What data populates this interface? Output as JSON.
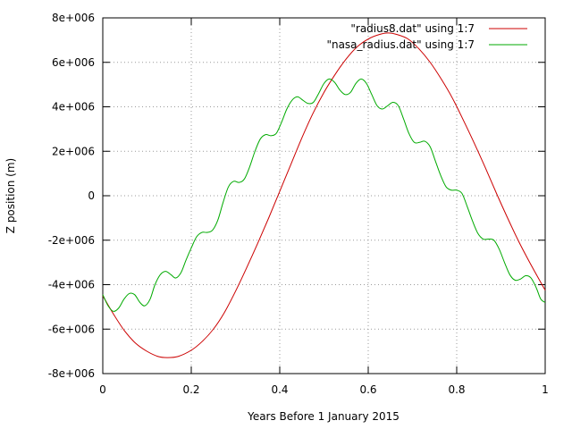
{
  "chart_data": {
    "type": "line",
    "xlabel": "Years Before 1 January 2015",
    "ylabel": "Z position (m)",
    "xlim": [
      0,
      1
    ],
    "ylim": [
      -8000000,
      8000000
    ],
    "grid": true,
    "legend_position": "top-right",
    "x_ticks": [
      {
        "value": 0,
        "label": "0"
      },
      {
        "value": 0.2,
        "label": "0.2"
      },
      {
        "value": 0.4,
        "label": "0.4"
      },
      {
        "value": 0.6,
        "label": "0.6"
      },
      {
        "value": 0.8,
        "label": "0.8"
      },
      {
        "value": 1,
        "label": "1"
      }
    ],
    "y_ticks": [
      {
        "value": -8000000,
        "label": "-8e+006"
      },
      {
        "value": -6000000,
        "label": "-6e+006"
      },
      {
        "value": -4000000,
        "label": "-4e+006"
      },
      {
        "value": -2000000,
        "label": "-2e+006"
      },
      {
        "value": 0,
        "label": "0"
      },
      {
        "value": 2000000,
        "label": "2e+006"
      },
      {
        "value": 4000000,
        "label": "4e+006"
      },
      {
        "value": 6000000,
        "label": "6e+006"
      },
      {
        "value": 8000000,
        "label": "8e+006"
      }
    ],
    "series": [
      {
        "name": "\"radius8.dat\" using 1:7",
        "color": "#cc0000",
        "points": [
          [
            0,
            -4500000
          ],
          [
            0.025,
            -5350000
          ],
          [
            0.05,
            -6100000
          ],
          [
            0.075,
            -6650000
          ],
          [
            0.1,
            -7000000
          ],
          [
            0.125,
            -7230000
          ],
          [
            0.145,
            -7280000
          ],
          [
            0.17,
            -7230000
          ],
          [
            0.2,
            -6950000
          ],
          [
            0.225,
            -6550000
          ],
          [
            0.25,
            -6000000
          ],
          [
            0.275,
            -5250000
          ],
          [
            0.3,
            -4300000
          ],
          [
            0.325,
            -3250000
          ],
          [
            0.35,
            -2150000
          ],
          [
            0.375,
            -1000000
          ],
          [
            0.4,
            200000
          ],
          [
            0.425,
            1400000
          ],
          [
            0.45,
            2600000
          ],
          [
            0.475,
            3700000
          ],
          [
            0.5,
            4650000
          ],
          [
            0.525,
            5450000
          ],
          [
            0.55,
            6150000
          ],
          [
            0.575,
            6700000
          ],
          [
            0.6,
            7050000
          ],
          [
            0.625,
            7250000
          ],
          [
            0.645,
            7320000
          ],
          [
            0.665,
            7250000
          ],
          [
            0.69,
            7050000
          ],
          [
            0.715,
            6600000
          ],
          [
            0.74,
            6000000
          ],
          [
            0.765,
            5250000
          ],
          [
            0.79,
            4400000
          ],
          [
            0.815,
            3400000
          ],
          [
            0.84,
            2350000
          ],
          [
            0.865,
            1250000
          ],
          [
            0.89,
            100000
          ],
          [
            0.915,
            -1000000
          ],
          [
            0.94,
            -2050000
          ],
          [
            0.965,
            -3000000
          ],
          [
            0.99,
            -3900000
          ],
          [
            1,
            -4250000
          ]
        ]
      },
      {
        "name": "\"nasa_radius.dat\" using 1:7",
        "color": "#00aa00",
        "points": [
          [
            0,
            -4450000
          ],
          [
            0.012,
            -4950000
          ],
          [
            0.024,
            -5200000
          ],
          [
            0.036,
            -5050000
          ],
          [
            0.048,
            -4650000
          ],
          [
            0.06,
            -4400000
          ],
          [
            0.072,
            -4450000
          ],
          [
            0.084,
            -4800000
          ],
          [
            0.095,
            -4950000
          ],
          [
            0.107,
            -4650000
          ],
          [
            0.118,
            -4000000
          ],
          [
            0.13,
            -3550000
          ],
          [
            0.142,
            -3400000
          ],
          [
            0.154,
            -3550000
          ],
          [
            0.165,
            -3700000
          ],
          [
            0.177,
            -3450000
          ],
          [
            0.188,
            -2900000
          ],
          [
            0.2,
            -2350000
          ],
          [
            0.212,
            -1850000
          ],
          [
            0.224,
            -1650000
          ],
          [
            0.236,
            -1650000
          ],
          [
            0.248,
            -1550000
          ],
          [
            0.26,
            -1100000
          ],
          [
            0.272,
            -300000
          ],
          [
            0.284,
            400000
          ],
          [
            0.296,
            650000
          ],
          [
            0.308,
            600000
          ],
          [
            0.32,
            750000
          ],
          [
            0.332,
            1300000
          ],
          [
            0.344,
            2000000
          ],
          [
            0.356,
            2550000
          ],
          [
            0.368,
            2750000
          ],
          [
            0.38,
            2700000
          ],
          [
            0.392,
            2800000
          ],
          [
            0.404,
            3300000
          ],
          [
            0.416,
            3900000
          ],
          [
            0.428,
            4300000
          ],
          [
            0.44,
            4450000
          ],
          [
            0.452,
            4300000
          ],
          [
            0.464,
            4150000
          ],
          [
            0.476,
            4200000
          ],
          [
            0.488,
            4600000
          ],
          [
            0.5,
            5050000
          ],
          [
            0.512,
            5250000
          ],
          [
            0.524,
            5100000
          ],
          [
            0.536,
            4750000
          ],
          [
            0.548,
            4550000
          ],
          [
            0.56,
            4650000
          ],
          [
            0.572,
            5050000
          ],
          [
            0.584,
            5250000
          ],
          [
            0.596,
            5050000
          ],
          [
            0.608,
            4550000
          ],
          [
            0.62,
            4050000
          ],
          [
            0.632,
            3900000
          ],
          [
            0.644,
            4050000
          ],
          [
            0.656,
            4200000
          ],
          [
            0.668,
            4050000
          ],
          [
            0.68,
            3450000
          ],
          [
            0.692,
            2800000
          ],
          [
            0.704,
            2400000
          ],
          [
            0.716,
            2400000
          ],
          [
            0.728,
            2450000
          ],
          [
            0.74,
            2200000
          ],
          [
            0.752,
            1550000
          ],
          [
            0.764,
            900000
          ],
          [
            0.776,
            400000
          ],
          [
            0.788,
            250000
          ],
          [
            0.8,
            250000
          ],
          [
            0.812,
            100000
          ],
          [
            0.824,
            -500000
          ],
          [
            0.836,
            -1150000
          ],
          [
            0.848,
            -1700000
          ],
          [
            0.86,
            -1950000
          ],
          [
            0.872,
            -1950000
          ],
          [
            0.884,
            -2000000
          ],
          [
            0.896,
            -2400000
          ],
          [
            0.908,
            -3000000
          ],
          [
            0.92,
            -3550000
          ],
          [
            0.932,
            -3800000
          ],
          [
            0.944,
            -3750000
          ],
          [
            0.956,
            -3600000
          ],
          [
            0.968,
            -3700000
          ],
          [
            0.98,
            -4150000
          ],
          [
            0.99,
            -4650000
          ],
          [
            1,
            -4800000
          ]
        ]
      }
    ]
  }
}
